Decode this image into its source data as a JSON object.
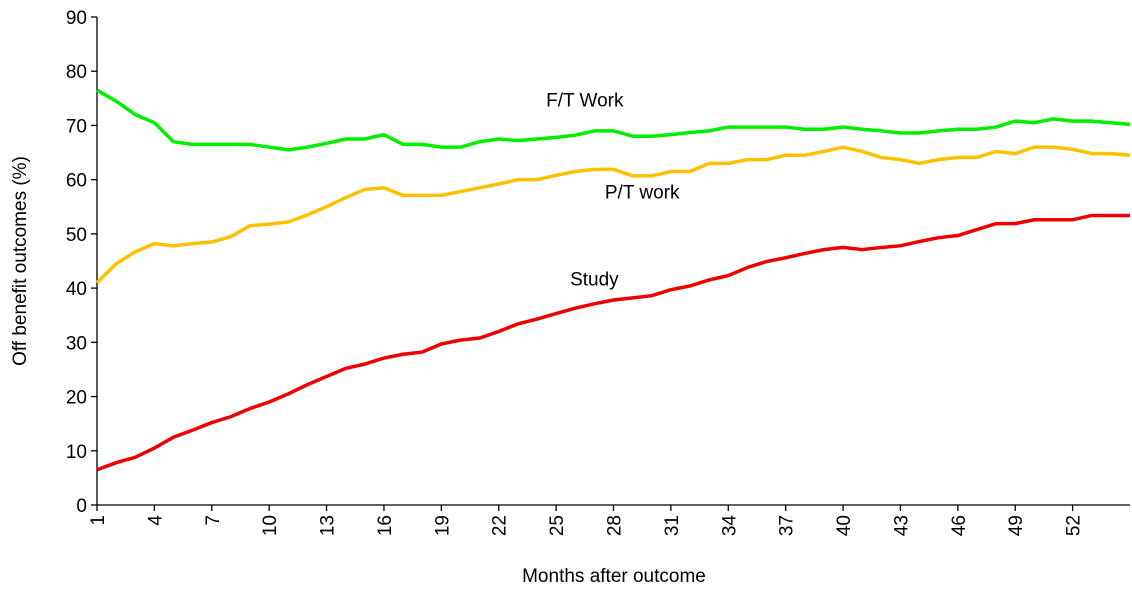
{
  "chart_data": {
    "type": "line",
    "x_label": "Months after outcome",
    "y_label": "Off benefit outcomes (%)",
    "x": [
      1,
      2,
      3,
      4,
      5,
      6,
      7,
      8,
      9,
      10,
      11,
      12,
      13,
      14,
      15,
      16,
      17,
      18,
      19,
      20,
      21,
      22,
      23,
      24,
      25,
      26,
      27,
      28,
      29,
      30,
      31,
      32,
      33,
      34,
      35,
      36,
      37,
      38,
      39,
      40,
      41,
      42,
      43,
      44,
      45,
      46,
      47,
      48,
      49,
      50,
      51,
      52,
      53,
      54,
      55
    ],
    "series": [
      {
        "name": "F/T Work",
        "color": "#00ee00",
        "values": [
          76.5,
          74.5,
          72,
          70.5,
          67,
          66.5,
          66.5,
          66.5,
          66.5,
          66,
          65.5,
          66,
          66.7,
          67.5,
          67.5,
          68.3,
          66.5,
          66.5,
          66,
          66,
          67,
          67.5,
          67.2,
          67.5,
          67.8,
          68.2,
          69,
          69,
          68,
          68,
          68.3,
          68.7,
          69,
          69.7,
          69.7,
          69.7,
          69.7,
          69.3,
          69.3,
          69.7,
          69.3,
          69,
          68.6,
          68.6,
          69,
          69.3,
          69.3,
          69.7,
          70.8,
          70.5,
          71.2,
          70.8,
          70.8,
          70.5,
          70.2
        ]
      },
      {
        "name": "P/T work",
        "color": "#ffc000",
        "values": [
          41,
          44.5,
          46.7,
          48.2,
          47.8,
          48.2,
          48.5,
          49.5,
          51.5,
          51.8,
          52.2,
          53.5,
          55,
          56.7,
          58.2,
          58.5,
          57.1,
          57.1,
          57.1,
          57.8,
          58.5,
          59.2,
          60,
          60,
          60.8,
          61.5,
          61.9,
          61.9,
          60.7,
          60.7,
          61.5,
          61.5,
          63,
          63,
          63.7,
          63.7,
          64.5,
          64.5,
          65.2,
          66,
          65.2,
          64.1,
          63.7,
          63,
          63.7,
          64.1,
          64.1,
          65.2,
          64.8,
          66,
          66,
          65.6,
          64.8,
          64.8,
          64.5
        ]
      },
      {
        "name": "Study",
        "color": "#ee0000",
        "values": [
          6.5,
          7.8,
          8.8,
          10.5,
          12.5,
          13.8,
          15.2,
          16.3,
          17.8,
          19,
          20.5,
          22.2,
          23.7,
          25.2,
          26,
          27.1,
          27.8,
          28.2,
          29.7,
          30.4,
          30.8,
          32,
          33.4,
          34.3,
          35.3,
          36.3,
          37.1,
          37.8,
          38.2,
          38.6,
          39.7,
          40.4,
          41.5,
          42.3,
          43.8,
          44.9,
          45.6,
          46.4,
          47.1,
          47.5,
          47.1,
          47.5,
          47.8,
          48.6,
          49.3,
          49.7,
          50.8,
          51.9,
          51.9,
          52.6,
          52.6,
          52.6,
          53.4,
          53.4,
          53.4
        ]
      }
    ],
    "xlim": [
      1,
      55
    ],
    "xticks": [
      1,
      4,
      7,
      10,
      13,
      16,
      19,
      22,
      25,
      28,
      31,
      34,
      37,
      40,
      43,
      46,
      49,
      52
    ],
    "ylim": [
      0,
      90
    ],
    "yticks": [
      0,
      10,
      20,
      30,
      40,
      50,
      60,
      70,
      80,
      90
    ],
    "grid": false
  }
}
